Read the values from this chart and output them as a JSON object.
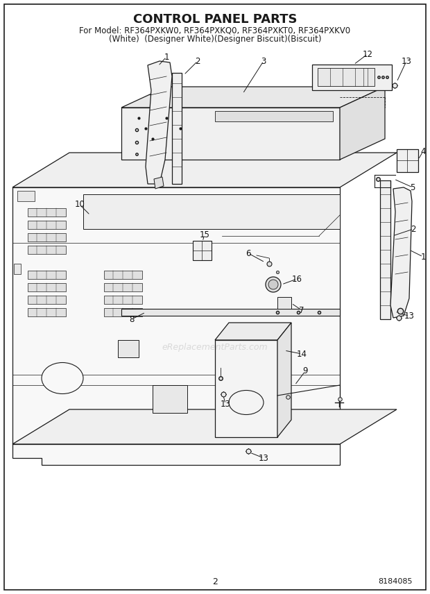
{
  "title": "CONTROL PANEL PARTS",
  "subtitle_line1": "For Model: RF364PXKW0, RF364PXKQ0, RF364PXKT0, RF364PXKV0",
  "subtitle_line2": "(White)  (Designer White)(Designer Biscuit)(Biscuit)",
  "page_number": "2",
  "doc_number": "8184085",
  "watermark": "eReplacementParts.com",
  "bg": "#ffffff",
  "lc": "#1a1a1a",
  "title_fs": 13,
  "sub_fs": 8.5,
  "label_fs": 8.5,
  "note_color": "#999999"
}
